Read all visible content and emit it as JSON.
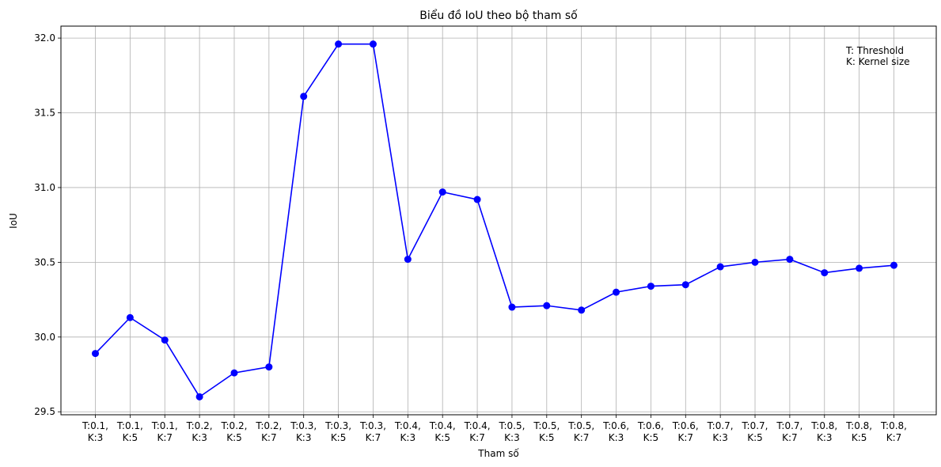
{
  "chart_data": {
    "type": "line",
    "title": "Biểu đồ IoU theo bộ tham số",
    "xlabel": "Tham số",
    "ylabel": "IoU",
    "categories": [
      "T:0.1,\nK:3",
      "T:0.1,\nK:5",
      "T:0.1,\nK:7",
      "T:0.2,\nK:3",
      "T:0.2,\nK:5",
      "T:0.2,\nK:7",
      "T:0.3,\nK:3",
      "T:0.3,\nK:5",
      "T:0.3,\nK:7",
      "T:0.4,\nK:3",
      "T:0.4,\nK:5",
      "T:0.4,\nK:7",
      "T:0.5,\nK:3",
      "T:0.5,\nK:5",
      "T:0.5,\nK:7",
      "T:0.6,\nK:3",
      "T:0.6,\nK:5",
      "T:0.6,\nK:7",
      "T:0.7,\nK:3",
      "T:0.7,\nK:5",
      "T:0.7,\nK:7",
      "T:0.8,\nK:3",
      "T:0.8,\nK:5",
      "T:0.8,\nK:7"
    ],
    "series": [
      {
        "values": [
          29.89,
          30.13,
          29.98,
          29.6,
          29.76,
          29.8,
          31.61,
          31.96,
          31.96,
          30.52,
          30.97,
          30.92,
          30.2,
          30.21,
          30.18,
          30.3,
          30.34,
          30.35,
          30.47,
          30.5,
          30.52,
          30.43,
          30.46,
          30.48
        ],
        "color": "#0000ff",
        "marker": "circle"
      }
    ],
    "ylim": [
      29.48,
      32.08
    ],
    "yticks": [
      29.5,
      30.0,
      30.5,
      31.0,
      31.5,
      32.0
    ],
    "ytick_labels": [
      "29.5",
      "30.0",
      "30.5",
      "31.0",
      "31.5",
      "32.0"
    ],
    "grid": true,
    "annotation": [
      "T: Threshold",
      "K: Kernel size"
    ],
    "annotation_position": "top-right"
  }
}
